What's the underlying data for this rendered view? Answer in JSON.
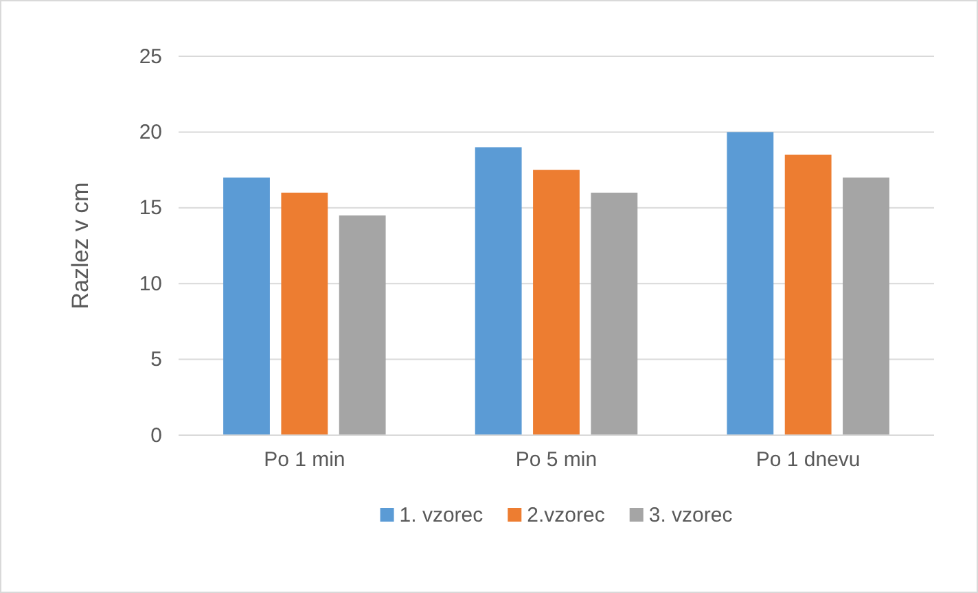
{
  "chart_data": {
    "type": "bar",
    "ylabel": "Razlez v cm",
    "categories": [
      "Po 1 min",
      "Po 5 min",
      "Po 1 dnevu"
    ],
    "series": [
      {
        "name": "1. vzorec",
        "color": "#5b9bd5",
        "values": [
          17,
          19,
          20
        ]
      },
      {
        "name": "2.vzorec",
        "color": "#ed7d31",
        "values": [
          16,
          17.5,
          18.5
        ]
      },
      {
        "name": "3. vzorec",
        "color": "#a5a5a5",
        "values": [
          14.5,
          16,
          17
        ]
      }
    ],
    "ylim": [
      0,
      25
    ],
    "yticks": [
      0,
      5,
      10,
      15,
      20,
      25
    ],
    "grid": "y",
    "legend": "bottom"
  }
}
